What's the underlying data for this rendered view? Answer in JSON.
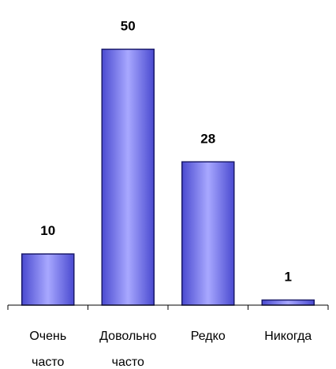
{
  "chart_data": {
    "type": "bar",
    "categories": [
      [
        "Очень",
        "часто"
      ],
      [
        "Довольно",
        "часто"
      ],
      [
        "Редко"
      ],
      [
        "Никогда"
      ]
    ],
    "values": [
      10,
      50,
      28,
      1
    ],
    "data_labels": [
      "10",
      "50",
      "28",
      "1"
    ],
    "ylim": [
      0,
      55
    ],
    "title": "",
    "xlabel": "",
    "ylabel": "",
    "grid": false,
    "legend": "none",
    "colors": {
      "bar_edge": "#1a1a6a",
      "bar_center": "#a8a8ff",
      "bar_side": "#4a4ad0",
      "axis": "#000000"
    }
  }
}
